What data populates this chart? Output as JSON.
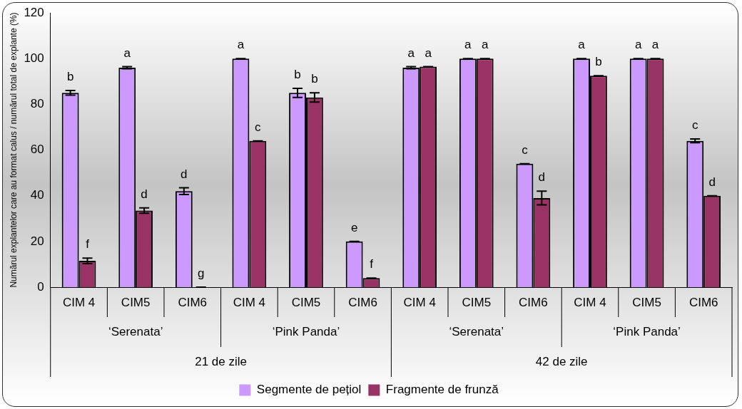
{
  "chart_data": {
    "type": "bar",
    "ylabel": "Numărul explantelor care au format calus / numărul total de explante (%)",
    "categories": [
      "CIM 4",
      "CIM5",
      "CIM6",
      "CIM 4",
      "CIM5",
      "CIM6",
      "CIM 4",
      "CIM5",
      "CIM6",
      "CIM 4",
      "CIM5",
      "CIM6"
    ],
    "series": [
      {
        "name": "Segmente de pețiol",
        "color": "#cc99ff",
        "values": [
          85,
          96,
          42,
          100,
          85,
          20,
          96,
          100,
          54,
          100,
          100,
          64
        ],
        "errors": [
          1,
          0.5,
          1.5,
          0,
          2,
          0,
          0.5,
          0,
          0,
          0,
          0,
          0.8
        ],
        "value_labels": [
          "b",
          "a",
          "d",
          "a",
          "b",
          "e",
          "a",
          "a",
          "c",
          "a",
          "a",
          "c"
        ]
      },
      {
        "name": "Fragmente de frunză",
        "color": "#993366",
        "values": [
          11.5,
          33.5,
          0,
          64,
          83,
          4,
          96.5,
          100,
          39,
          92.5,
          100,
          40
        ],
        "errors": [
          1.2,
          1.2,
          0,
          0,
          2,
          0,
          0,
          0,
          3,
          0,
          0,
          0
        ],
        "value_labels": [
          "f",
          "d",
          "g",
          "c",
          "b",
          "f",
          "a",
          "a",
          "d",
          "b",
          "a",
          "d"
        ]
      }
    ],
    "annotations": [
      "‘Serenata’",
      "‘Pink Panda’",
      "‘Serenata’",
      "‘Pink Panda’",
      "21 de zile",
      "42 de zile"
    ],
    "ylim": [
      0,
      120
    ],
    "yticks": [
      0,
      20,
      40,
      60,
      80,
      100,
      120
    ],
    "grid": false,
    "legend": "bottom"
  }
}
